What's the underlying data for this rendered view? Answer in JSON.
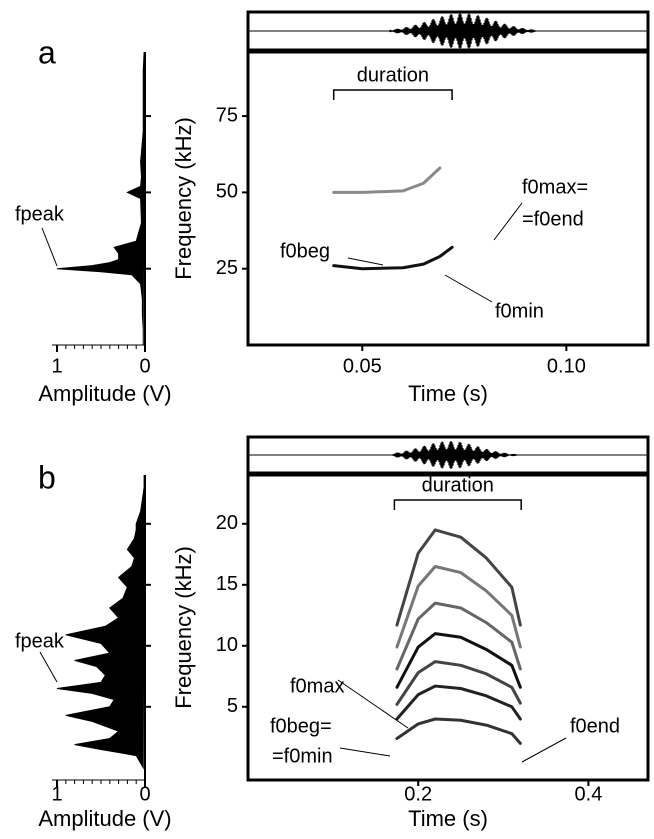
{
  "chart_data": [
    {
      "type": "spectrogram",
      "label": "a",
      "xlabel": "Time (s)",
      "ylabel": "Frequency (kHz)",
      "xlim": [
        0.022,
        0.12
      ],
      "xticks": [
        0.05,
        {
          "value": 0.1,
          "label": "0.10"
        }
      ],
      "ylim": [
        0,
        96
      ],
      "yticks": [
        25,
        50,
        75
      ],
      "spectrum": {
        "xlabel": "Amplitude (V)",
        "xlim": [
          1,
          0
        ],
        "xticks": [
          1,
          0
        ],
        "freq": [
          0,
          5,
          10,
          15,
          20,
          23,
          24,
          25,
          26,
          27,
          28,
          30,
          32,
          34,
          40,
          48,
          50,
          52,
          55,
          60,
          70,
          80,
          90,
          96
        ],
        "amplitude": [
          0.02,
          0.02,
          0.03,
          0.03,
          0.05,
          0.15,
          0.5,
          1,
          0.6,
          0.4,
          0.3,
          0.3,
          0.35,
          0.1,
          0.04,
          0.05,
          0.2,
          0.05,
          0.04,
          0.05,
          0.02,
          0.02,
          0.02,
          0.01
        ]
      },
      "duration": {
        "label": "duration",
        "start": 0.043,
        "end": 0.072
      },
      "x": [
        0.043,
        0.05,
        0.06,
        0.065,
        0.069,
        0.072
      ],
      "contours": [
        {
          "color": "#111111",
          "values": [
            26,
            25,
            25.3,
            26.5,
            29,
            32
          ]
        },
        {
          "color": "#8a8a8a",
          "values": [
            50,
            50,
            50.5,
            53,
            58,
            null
          ]
        }
      ],
      "annotations": [
        "fpeak",
        "f0beg",
        "f0min",
        "f0max=",
        "=f0end"
      ]
    },
    {
      "type": "spectrogram",
      "label": "b",
      "xlabel": "Time (s)",
      "ylabel": "Frequency (kHz)",
      "xlim": [
        0,
        0.47
      ],
      "xticks": [
        0.2,
        0.4
      ],
      "ylim": [
        -1,
        24
      ],
      "yticks": [
        5,
        10,
        15,
        20
      ],
      "spectrum": {
        "xlabel": "Amplitude (V)",
        "xlim": [
          1,
          0
        ],
        "xticks": [
          1,
          0
        ],
        "freq": [
          0,
          1,
          1.5,
          1.9,
          2.4,
          3,
          3.8,
          4.3,
          5,
          5.6,
          6.1,
          6.5,
          7,
          7.6,
          8.3,
          8.8,
          9.4,
          10.2,
          10.9,
          11.6,
          12.3,
          13.1,
          13.9,
          14.8,
          15.6,
          16.5,
          17.2,
          17.9,
          18.8,
          19.5,
          20,
          21,
          22,
          23,
          24
        ],
        "amplitude": [
          0.02,
          0.1,
          0.5,
          0.8,
          0.4,
          0.3,
          0.6,
          0.9,
          0.4,
          0.35,
          0.6,
          1,
          0.5,
          0.45,
          0.55,
          0.8,
          0.4,
          0.5,
          0.9,
          0.45,
          0.3,
          0.4,
          0.25,
          0.2,
          0.3,
          0.15,
          0.12,
          0.2,
          0.12,
          0.1,
          0.1,
          0.05,
          0.03,
          0.01,
          0.01
        ]
      },
      "duration": {
        "label": "duration",
        "start": 0.172,
        "end": 0.321
      },
      "x": [
        0.175,
        0.2,
        0.22,
        0.25,
        0.28,
        0.31,
        0.32
      ],
      "contours": [
        {
          "color": "#333333",
          "values": [
            2.4,
            3.6,
            4,
            3.9,
            3.5,
            2.8,
            2
          ]
        },
        {
          "color": "#222222",
          "values": [
            4,
            6,
            6.7,
            6.5,
            5.9,
            5,
            4
          ]
        },
        {
          "color": "#444444",
          "values": [
            5.2,
            7.8,
            8.7,
            8.4,
            7.7,
            6.6,
            5.3
          ]
        },
        {
          "color": "#111111",
          "values": [
            6.6,
            9.9,
            11,
            10.7,
            9.7,
            8.4,
            6.6
          ]
        },
        {
          "color": "#666666",
          "values": [
            8.1,
            12.2,
            13.5,
            13.1,
            11.9,
            10.3,
            8.1
          ]
        },
        {
          "color": "#777777",
          "values": [
            9.9,
            14.9,
            16.5,
            16,
            14.5,
            12.5,
            9.9
          ]
        },
        {
          "color": "#444444",
          "values": [
            11.7,
            17.6,
            19.5,
            18.9,
            17.2,
            14.8,
            11.7
          ]
        }
      ],
      "annotations": [
        "fpeak",
        "f0max",
        "f0beg=",
        "=f0min",
        "f0end"
      ]
    }
  ]
}
